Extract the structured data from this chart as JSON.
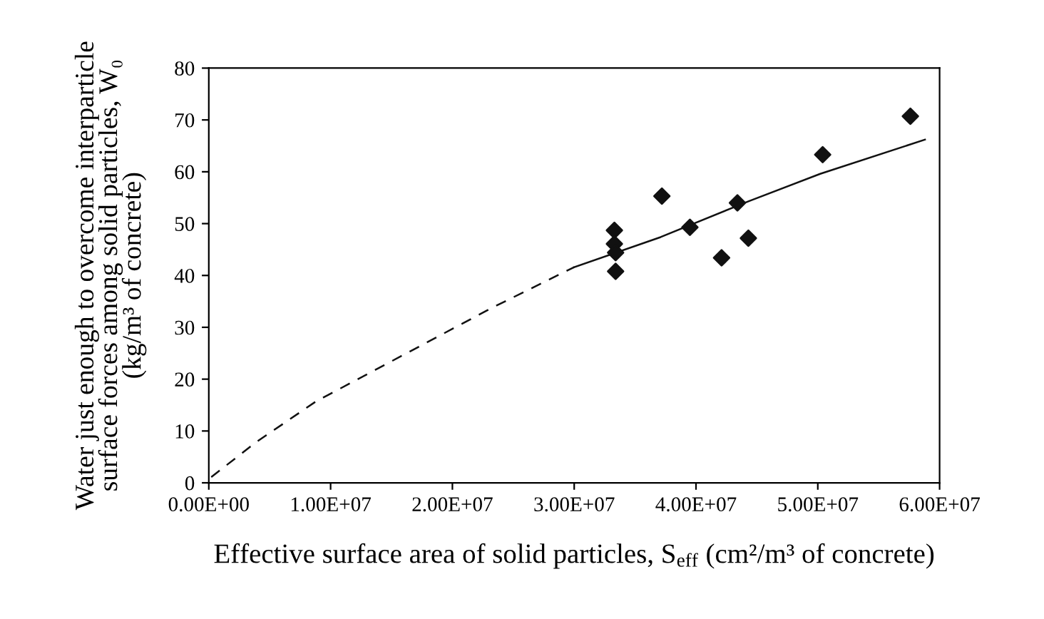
{
  "chart_data": {
    "type": "scatter",
    "xlabel": "Effective surface area of solid particles, S$_{eff}$ (cm²/m³ of concrete)",
    "ylabel": "Water just enough to overcome interparticle\nsurface forces among solid particles, W₀\n(kg/m³ of concrete)",
    "xlim": [
      0,
      60000000
    ],
    "ylim": [
      0,
      80
    ],
    "xticks": [
      {
        "value": 0,
        "label": "0.00E+00"
      },
      {
        "value": 10000000,
        "label": "1.00E+07"
      },
      {
        "value": 20000000,
        "label": "2.00E+07"
      },
      {
        "value": 30000000,
        "label": "3.00E+07"
      },
      {
        "value": 40000000,
        "label": "4.00E+07"
      },
      {
        "value": 50000000,
        "label": "5.00E+07"
      },
      {
        "value": 60000000,
        "label": "6.00E+07"
      }
    ],
    "yticks": [
      0,
      10,
      20,
      30,
      40,
      50,
      60,
      70,
      80
    ],
    "grid": false,
    "legend": false,
    "series": [
      {
        "color": "#111111",
        "marker": "diamond",
        "x": [
          33300000,
          33300000,
          33400000,
          33400000,
          37200000,
          39500000,
          42100000,
          43400000,
          44300000,
          50400000,
          57600000
        ],
        "values": [
          48.7,
          46.1,
          44.4,
          40.8,
          55.3,
          49.3,
          43.4,
          54.0,
          47.2,
          63.3,
          70.7
        ]
      },
      {
        "type": "line",
        "color": "#111111",
        "marker": "none",
        "line_style": "dashed",
        "x": [
          200000,
          3800000,
          8800000,
          16400000,
          23200000,
          30000000
        ],
        "values": [
          1.1,
          7.7,
          15.7,
          25.2,
          33.7,
          41.6
        ]
      },
      {
        "type": "line",
        "color": "#111111",
        "marker": "none",
        "line_style": "solid",
        "x": [
          30000000,
          37100000,
          44300000,
          50200000,
          58800000
        ],
        "values": [
          41.6,
          47.4,
          54.3,
          59.6,
          66.2
        ]
      }
    ]
  }
}
